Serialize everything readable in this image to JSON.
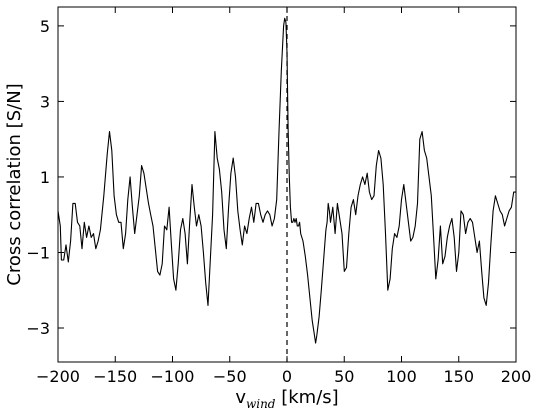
{
  "chart_data": {
    "type": "line",
    "title": "",
    "xlabel": "v",
    "xlabel_subscript": "wind",
    "xlabel_unit": " [km/s]",
    "ylabel": "Cross correlation [S/N]",
    "xlim": [
      -200,
      200
    ],
    "ylim": [
      -3.9,
      5.5
    ],
    "xticks": [
      -200,
      -150,
      -100,
      -50,
      0,
      50,
      100,
      150,
      200
    ],
    "xtick_labels": [
      "−200",
      "−150",
      "−100",
      "−50",
      "0",
      "50",
      "100",
      "150",
      "200"
    ],
    "yticks": [
      5,
      3,
      1,
      -1,
      -3
    ],
    "ytick_labels": [
      "5",
      "3",
      "1",
      "−1",
      "−3"
    ],
    "grid": false,
    "reference_line": {
      "x": 0,
      "style": "dashed",
      "color": "#000000"
    },
    "series": [
      {
        "color": "#000000",
        "points": [
          [
            -200,
            0.1
          ],
          [
            -198,
            -0.3
          ],
          [
            -197,
            -1.2
          ],
          [
            -195,
            -1.2
          ],
          [
            -193,
            -0.8
          ],
          [
            -191,
            -1.25
          ],
          [
            -189,
            -0.7
          ],
          [
            -187,
            0.3
          ],
          [
            -185,
            0.3
          ],
          [
            -183,
            -0.2
          ],
          [
            -181,
            -0.3
          ],
          [
            -179,
            -0.9
          ],
          [
            -177,
            -0.2
          ],
          [
            -175,
            -0.6
          ],
          [
            -173,
            -0.3
          ],
          [
            -171,
            -0.6
          ],
          [
            -169,
            -0.5
          ],
          [
            -167,
            -0.9
          ],
          [
            -165,
            -0.7
          ],
          [
            -163,
            -0.4
          ],
          [
            -160,
            0.5
          ],
          [
            -157,
            1.6
          ],
          [
            -155,
            2.2
          ],
          [
            -153,
            1.7
          ],
          [
            -151,
            0.5
          ],
          [
            -149,
            0.0
          ],
          [
            -147,
            -0.2
          ],
          [
            -145,
            -0.2
          ],
          [
            -143,
            -0.9
          ],
          [
            -141,
            -0.5
          ],
          [
            -139,
            0.4
          ],
          [
            -137,
            1.0
          ],
          [
            -135,
            0.2
          ],
          [
            -133,
            -0.5
          ],
          [
            -131,
            0.0
          ],
          [
            -129,
            0.5
          ],
          [
            -127,
            1.3
          ],
          [
            -125,
            1.1
          ],
          [
            -123,
            0.7
          ],
          [
            -121,
            0.3
          ],
          [
            -119,
            0.0
          ],
          [
            -117,
            -0.3
          ],
          [
            -115,
            -0.9
          ],
          [
            -113,
            -1.5
          ],
          [
            -111,
            -1.6
          ],
          [
            -109,
            -1.3
          ],
          [
            -107,
            -0.3
          ],
          [
            -105,
            -0.4
          ],
          [
            -103,
            0.2
          ],
          [
            -101,
            -0.8
          ],
          [
            -99,
            -1.7
          ],
          [
            -97,
            -2.0
          ],
          [
            -95,
            -1.3
          ],
          [
            -93,
            -0.4
          ],
          [
            -91,
            -0.1
          ],
          [
            -89,
            -0.5
          ],
          [
            -87,
            -1.3
          ],
          [
            -85,
            -0.2
          ],
          [
            -83,
            0.8
          ],
          [
            -81,
            0.2
          ],
          [
            -79,
            -0.3
          ],
          [
            -77,
            0.0
          ],
          [
            -75,
            -0.3
          ],
          [
            -73,
            -1.0
          ],
          [
            -71,
            -1.8
          ],
          [
            -69,
            -2.4
          ],
          [
            -67,
            -1.2
          ],
          [
            -65,
            0.0
          ],
          [
            -63,
            2.2
          ],
          [
            -61,
            1.5
          ],
          [
            -59,
            1.2
          ],
          [
            -57,
            0.6
          ],
          [
            -55,
            -0.4
          ],
          [
            -53,
            -0.9
          ],
          [
            -51,
            0.2
          ],
          [
            -49,
            1.1
          ],
          [
            -47,
            1.5
          ],
          [
            -45,
            1.0
          ],
          [
            -43,
            0.1
          ],
          [
            -41,
            -0.4
          ],
          [
            -39,
            -0.8
          ],
          [
            -37,
            -0.3
          ],
          [
            -35,
            -0.5
          ],
          [
            -33,
            -0.1
          ],
          [
            -31,
            0.2
          ],
          [
            -29,
            -0.2
          ],
          [
            -27,
            0.3
          ],
          [
            -25,
            0.3
          ],
          [
            -23,
            0.0
          ],
          [
            -21,
            -0.2
          ],
          [
            -19,
            0.0
          ],
          [
            -17,
            0.1
          ],
          [
            -15,
            0.0
          ],
          [
            -13,
            -0.3
          ],
          [
            -11,
            -0.1
          ],
          [
            -9,
            0.4
          ],
          [
            -7,
            2.2
          ],
          [
            -5,
            3.8
          ],
          [
            -3,
            5.0
          ],
          [
            -2,
            5.2
          ],
          [
            -1,
            5.1
          ],
          [
            0,
            4.3
          ],
          [
            1,
            2.3
          ],
          [
            2,
            1.0
          ],
          [
            3,
            0.2
          ],
          [
            4,
            -0.2
          ],
          [
            5,
            -0.2
          ],
          [
            6,
            -0.1
          ],
          [
            7,
            -0.2
          ],
          [
            8,
            -0.1
          ],
          [
            9,
            -0.3
          ],
          [
            10,
            -0.3
          ],
          [
            11,
            -0.2
          ],
          [
            12,
            -0.5
          ],
          [
            14,
            -0.7
          ],
          [
            16,
            -1.1
          ],
          [
            18,
            -1.6
          ],
          [
            20,
            -2.2
          ],
          [
            22,
            -2.8
          ],
          [
            24,
            -3.2
          ],
          [
            25,
            -3.4
          ],
          [
            26,
            -3.2
          ],
          [
            28,
            -2.7
          ],
          [
            30,
            -2.0
          ],
          [
            32,
            -1.2
          ],
          [
            34,
            -0.4
          ],
          [
            35,
            -0.2
          ],
          [
            36,
            0.3
          ],
          [
            37,
            0.1
          ],
          [
            38,
            -0.2
          ],
          [
            40,
            0.2
          ],
          [
            42,
            -0.5
          ],
          [
            44,
            0.3
          ],
          [
            46,
            -0.1
          ],
          [
            48,
            -0.5
          ],
          [
            50,
            -1.5
          ],
          [
            52,
            -1.4
          ],
          [
            54,
            -0.5
          ],
          [
            56,
            0.2
          ],
          [
            58,
            0.4
          ],
          [
            60,
            0.0
          ],
          [
            62,
            0.5
          ],
          [
            64,
            0.8
          ],
          [
            66,
            1.0
          ],
          [
            68,
            0.8
          ],
          [
            70,
            1.1
          ],
          [
            72,
            0.6
          ],
          [
            74,
            0.4
          ],
          [
            76,
            0.5
          ],
          [
            78,
            1.3
          ],
          [
            80,
            1.7
          ],
          [
            82,
            1.5
          ],
          [
            84,
            0.8
          ],
          [
            86,
            -0.5
          ],
          [
            88,
            -2.0
          ],
          [
            90,
            -1.7
          ],
          [
            92,
            -0.9
          ],
          [
            94,
            -0.5
          ],
          [
            96,
            -0.6
          ],
          [
            98,
            -0.3
          ],
          [
            100,
            0.4
          ],
          [
            102,
            0.8
          ],
          [
            104,
            0.3
          ],
          [
            106,
            -0.2
          ],
          [
            108,
            -0.7
          ],
          [
            110,
            -0.6
          ],
          [
            112,
            -0.3
          ],
          [
            114,
            0.3
          ],
          [
            116,
            2.0
          ],
          [
            118,
            2.2
          ],
          [
            120,
            1.7
          ],
          [
            122,
            1.5
          ],
          [
            124,
            1.0
          ],
          [
            126,
            0.5
          ],
          [
            128,
            -0.6
          ],
          [
            130,
            -1.7
          ],
          [
            132,
            -1.2
          ],
          [
            134,
            -0.3
          ],
          [
            136,
            -1.3
          ],
          [
            138,
            -1.1
          ],
          [
            140,
            -0.6
          ],
          [
            142,
            -0.3
          ],
          [
            144,
            -0.1
          ],
          [
            146,
            -0.6
          ],
          [
            148,
            -1.5
          ],
          [
            150,
            -1.0
          ],
          [
            152,
            0.1
          ],
          [
            154,
            0.0
          ],
          [
            156,
            -0.5
          ],
          [
            158,
            -0.2
          ],
          [
            160,
            -0.1
          ],
          [
            162,
            -0.2
          ],
          [
            164,
            -0.6
          ],
          [
            166,
            -1.0
          ],
          [
            168,
            -0.7
          ],
          [
            170,
            -1.5
          ],
          [
            172,
            -2.2
          ],
          [
            174,
            -2.4
          ],
          [
            176,
            -1.8
          ],
          [
            178,
            -0.8
          ],
          [
            180,
            0.1
          ],
          [
            182,
            0.5
          ],
          [
            184,
            0.3
          ],
          [
            186,
            0.1
          ],
          [
            188,
            0.0
          ],
          [
            190,
            -0.3
          ],
          [
            192,
            -0.1
          ],
          [
            194,
            0.1
          ],
          [
            196,
            0.2
          ],
          [
            198,
            0.6
          ],
          [
            200,
            0.6
          ]
        ]
      }
    ]
  }
}
